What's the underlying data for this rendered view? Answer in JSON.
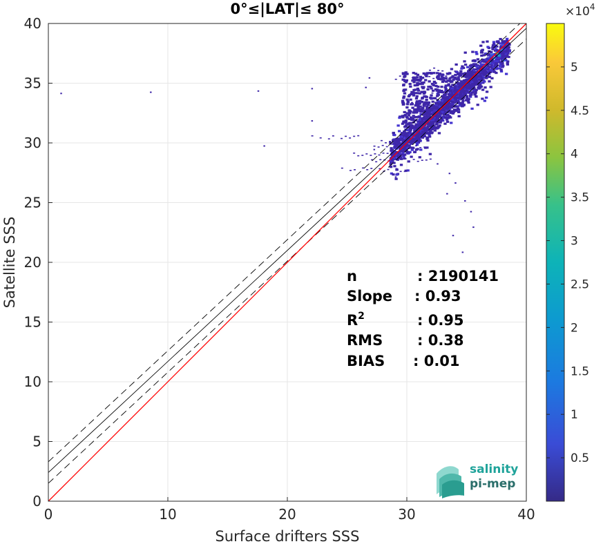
{
  "chart_data": {
    "type": "heatmap",
    "title": "0°≤|LAT|≤ 80°",
    "xlabel": "Surface drifters SSS",
    "ylabel": "Satellite SSS",
    "xlim": [
      0,
      40
    ],
    "ylim": [
      0,
      40
    ],
    "x_ticks": [
      "0",
      "10",
      "20",
      "30",
      "40"
    ],
    "y_ticks": [
      "0",
      "5",
      "10",
      "15",
      "20",
      "25",
      "30",
      "35",
      "40"
    ],
    "grid": true,
    "colorbar": {
      "range": [
        0,
        55000
      ],
      "exponent_label": "×10",
      "exponent_power": "4",
      "ticks": [
        "0.5",
        "1",
        "1.5",
        "2",
        "2.5",
        "3",
        "3.5",
        "4",
        "4.5",
        "5"
      ],
      "tick_values": [
        0.5,
        1,
        1.5,
        2,
        2.5,
        3,
        3.5,
        4,
        4.5,
        5
      ]
    },
    "lines": {
      "identity": {
        "slope": 1,
        "intercept": 0,
        "color": "#ff0000"
      },
      "fit": {
        "slope": 0.93,
        "intercept": 2.4,
        "color": "#000000"
      },
      "fit_upper": {
        "slope": 0.93,
        "intercept": 3.3,
        "dashed": true
      },
      "fit_lower": {
        "slope": 0.93,
        "intercept": 1.5,
        "dashed": true
      }
    },
    "density_core": {
      "x_range": [
        28.5,
        38.5
      ],
      "y_range": [
        27.5,
        38.8
      ],
      "peak_at": [
        37.5,
        37.5
      ]
    },
    "stats": [
      {
        "label": "n",
        "value": ": 2190141"
      },
      {
        "label": "Slope",
        "value": ": 0.93"
      },
      {
        "label": "R",
        "sup": "2",
        "value": ": 0.95"
      },
      {
        "label": "RMS",
        "value": ": 0.38"
      },
      {
        "label": "BIAS",
        "value": ": 0.01"
      }
    ]
  },
  "logo": {
    "line1": "salinity",
    "line2": "pi-mep"
  },
  "colors": {
    "identity_line": "#ff0000",
    "fit_line": "#000000",
    "low_density": "#3e26a8",
    "logo_teal": "#1fa39a",
    "logo_dark": "#2a6e6a"
  }
}
